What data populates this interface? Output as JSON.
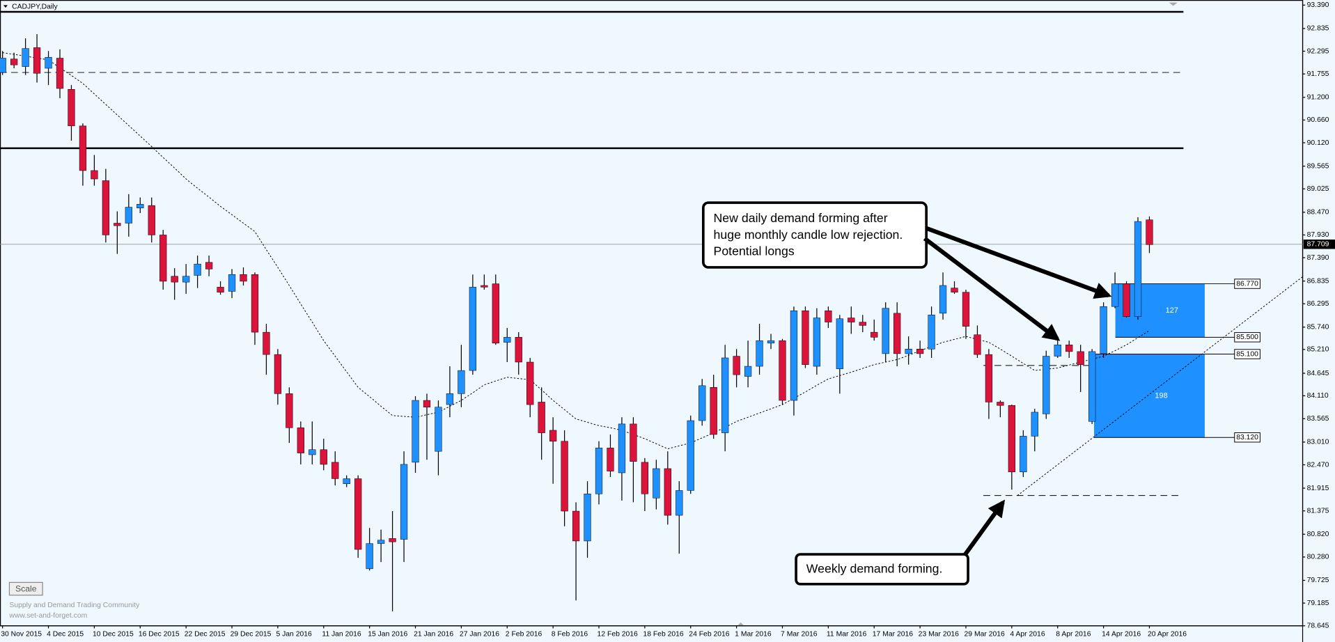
{
  "title": "CADJPY,Daily",
  "chart_data": {
    "type": "candlestick",
    "categories": [
      "30 Nov 2015",
      null,
      null,
      null,
      "4 Dec 2015",
      null,
      null,
      null,
      "10 Dec 2015",
      null,
      null,
      null,
      "16 Dec 2015",
      null,
      null,
      null,
      "22 Dec 2015",
      null,
      null,
      null,
      "29 Dec 2015",
      null,
      null,
      null,
      "5 Jan 2016",
      null,
      null,
      null,
      "11 Jan 2016",
      null,
      null,
      null,
      "15 Jan 2016",
      null,
      null,
      null,
      "21 Jan 2016",
      null,
      null,
      null,
      "27 Jan 2016",
      null,
      null,
      null,
      "2 Feb 2016",
      null,
      null,
      null,
      "8 Feb 2016",
      null,
      null,
      null,
      "12 Feb 2016",
      null,
      null,
      null,
      "18 Feb 2016",
      null,
      null,
      null,
      "24 Feb 2016",
      null,
      null,
      null,
      "1 Mar 2016",
      null,
      null,
      null,
      "7 Mar 2016",
      null,
      null,
      null,
      "11 Mar 2016",
      null,
      null,
      null,
      "17 Mar 2016",
      null,
      null,
      null,
      "23 Mar 2016",
      null,
      null,
      null,
      "29 Mar 2016",
      null,
      null,
      null,
      "4 Apr 2016",
      null,
      null,
      null,
      "8 Apr 2016",
      null,
      null,
      null,
      "14 Apr 2016",
      null,
      null,
      null,
      "20 Apr 2016"
    ],
    "ohlc": [
      [
        91.79,
        92.3,
        91.73,
        92.13
      ],
      [
        92.11,
        92.26,
        91.89,
        91.97
      ],
      [
        91.93,
        92.6,
        91.73,
        92.36
      ],
      [
        92.38,
        92.7,
        91.55,
        91.77
      ],
      [
        91.89,
        92.3,
        91.49,
        92.15
      ],
      [
        92.13,
        92.34,
        91.18,
        91.41
      ],
      [
        91.39,
        91.49,
        90.17,
        90.52
      ],
      [
        90.52,
        90.58,
        89.1,
        89.46
      ],
      [
        89.46,
        89.83,
        89.1,
        89.26
      ],
      [
        89.22,
        89.5,
        87.75,
        87.93
      ],
      [
        88.21,
        88.49,
        87.48,
        88.15
      ],
      [
        88.21,
        88.9,
        87.89,
        88.59
      ],
      [
        88.57,
        88.82,
        88.45,
        88.66
      ],
      [
        88.63,
        88.82,
        87.75,
        87.93
      ],
      [
        87.93,
        88.05,
        86.63,
        86.83
      ],
      [
        86.95,
        87.14,
        86.39,
        86.81
      ],
      [
        86.81,
        87.24,
        86.53,
        86.95
      ],
      [
        86.97,
        87.44,
        86.67,
        87.24
      ],
      [
        87.28,
        87.44,
        86.95,
        87.12
      ],
      [
        86.69,
        86.83,
        86.51,
        86.57
      ],
      [
        86.59,
        87.12,
        86.43,
        86.99
      ],
      [
        86.99,
        87.16,
        86.73,
        86.83
      ],
      [
        86.99,
        87.04,
        85.32,
        85.62
      ],
      [
        85.62,
        85.82,
        84.61,
        85.09
      ],
      [
        85.09,
        85.22,
        83.9,
        84.16
      ],
      [
        84.16,
        84.31,
        82.99,
        83.35
      ],
      [
        83.35,
        83.5,
        82.48,
        82.75
      ],
      [
        82.71,
        83.5,
        82.48,
        82.83
      ],
      [
        82.83,
        83.09,
        82.34,
        82.48
      ],
      [
        82.53,
        82.79,
        81.98,
        82.14
      ],
      [
        82.02,
        82.22,
        81.94,
        82.14
      ],
      [
        82.14,
        82.22,
        80.26,
        80.46
      ],
      [
        80.0,
        80.97,
        79.96,
        80.6
      ],
      [
        80.6,
        80.93,
        80.16,
        80.68
      ],
      [
        80.72,
        81.37,
        78.99,
        80.64
      ],
      [
        80.7,
        82.79,
        80.16,
        82.48
      ],
      [
        82.53,
        84.1,
        82.28,
        84.0
      ],
      [
        84.0,
        84.16,
        82.59,
        83.84
      ],
      [
        82.79,
        84.0,
        82.22,
        83.84
      ],
      [
        83.9,
        84.81,
        83.6,
        84.16
      ],
      [
        84.16,
        85.32,
        83.84,
        84.71
      ],
      [
        84.71,
        86.99,
        84.61,
        86.69
      ],
      [
        86.73,
        86.99,
        86.63,
        86.69
      ],
      [
        86.77,
        86.99,
        85.32,
        85.36
      ],
      [
        85.38,
        85.72,
        84.91,
        85.5
      ],
      [
        85.5,
        85.62,
        84.61,
        84.91
      ],
      [
        84.91,
        85.01,
        83.6,
        83.9
      ],
      [
        83.96,
        84.31,
        82.59,
        83.23
      ],
      [
        83.29,
        83.6,
        82.02,
        83.03
      ],
      [
        83.03,
        83.29,
        81.01,
        81.37
      ],
      [
        81.37,
        81.58,
        79.25,
        80.66
      ],
      [
        80.66,
        82.08,
        80.26,
        81.78
      ],
      [
        81.78,
        83.03,
        81.53,
        82.87
      ],
      [
        82.87,
        83.19,
        82.18,
        82.32
      ],
      [
        82.28,
        83.6,
        81.62,
        83.44
      ],
      [
        83.44,
        83.6,
        81.58,
        82.55
      ],
      [
        82.53,
        82.63,
        81.37,
        81.78
      ],
      [
        81.68,
        82.59,
        81.41,
        82.38
      ],
      [
        82.38,
        82.79,
        81.05,
        81.27
      ],
      [
        81.27,
        82.08,
        80.36,
        81.86
      ],
      [
        81.86,
        83.64,
        81.78,
        83.52
      ],
      [
        83.52,
        84.51,
        83.4,
        84.35
      ],
      [
        84.31,
        84.61,
        83.09,
        83.19
      ],
      [
        83.23,
        85.32,
        82.79,
        85.01
      ],
      [
        85.05,
        85.22,
        84.31,
        84.61
      ],
      [
        84.57,
        85.42,
        84.31,
        84.81
      ],
      [
        84.81,
        85.82,
        84.61,
        85.42
      ],
      [
        85.36,
        85.58,
        85.22,
        85.42
      ],
      [
        85.42,
        85.46,
        83.9,
        84.0
      ],
      [
        84.0,
        86.23,
        83.64,
        86.13
      ],
      [
        86.13,
        86.23,
        84.77,
        84.85
      ],
      [
        84.81,
        86.19,
        84.61,
        85.96
      ],
      [
        86.13,
        86.23,
        85.72,
        85.86
      ],
      [
        84.75,
        86.03,
        84.16,
        85.94
      ],
      [
        85.96,
        86.23,
        85.58,
        85.86
      ],
      [
        85.86,
        86.03,
        85.62,
        85.78
      ],
      [
        85.62,
        85.92,
        85.42,
        85.5
      ],
      [
        85.11,
        86.33,
        84.91,
        86.19
      ],
      [
        86.07,
        86.33,
        84.81,
        85.11
      ],
      [
        85.11,
        85.52,
        84.85,
        85.22
      ],
      [
        85.22,
        85.42,
        85.01,
        85.11
      ],
      [
        85.22,
        86.23,
        85.01,
        86.03
      ],
      [
        86.07,
        87.04,
        85.92,
        86.73
      ],
      [
        86.67,
        86.83,
        86.53,
        86.57
      ],
      [
        86.57,
        86.63,
        85.46,
        85.76
      ],
      [
        85.56,
        85.78,
        85.01,
        85.09
      ],
      [
        85.09,
        85.22,
        83.56,
        83.96
      ],
      [
        83.96,
        84.0,
        83.6,
        83.88
      ],
      [
        83.88,
        83.9,
        81.88,
        82.3
      ],
      [
        82.3,
        83.29,
        82.18,
        83.15
      ],
      [
        83.15,
        83.8,
        82.79,
        83.72
      ],
      [
        83.68,
        85.18,
        83.56,
        85.05
      ],
      [
        85.05,
        85.52,
        85.01,
        85.32
      ],
      [
        85.32,
        85.42,
        85.01,
        85.16
      ],
      [
        85.16,
        85.32,
        84.2,
        84.85
      ],
      [
        83.5,
        85.22,
        83.44,
        85.16
      ],
      [
        85.11,
        86.33,
        85.01,
        86.23
      ],
      [
        86.23,
        87.04,
        86.19,
        86.77
      ],
      [
        86.77,
        86.83,
        85.97,
        85.99
      ],
      [
        85.99,
        88.35,
        85.92,
        88.25
      ],
      [
        88.29,
        88.37,
        87.5,
        87.7
      ]
    ],
    "up_color": "#1e90ff",
    "down_color": "#dc143c",
    "moving_average": [
      92.26,
      92.22,
      92.18,
      92.13,
      92.09,
      91.9,
      91.72,
      91.53,
      91.28,
      91.03,
      90.78,
      90.53,
      90.28,
      90.03,
      89.77,
      89.52,
      89.26,
      89.04,
      88.83,
      88.61,
      88.41,
      88.21,
      88.01,
      87.58,
      87.16,
      86.73,
      86.29,
      85.86,
      85.42,
      85.05,
      84.68,
      84.31,
      84.09,
      83.86,
      83.64,
      83.62,
      83.6,
      83.66,
      83.72,
      83.86,
      84.0,
      84.18,
      84.37,
      84.46,
      84.55,
      84.52,
      84.49,
      84.25,
      84.0,
      83.78,
      83.56,
      83.48,
      83.4,
      83.35,
      83.29,
      83.19,
      83.09,
      82.97,
      82.85,
      82.92,
      82.99,
      83.11,
      83.23,
      83.36,
      83.5,
      83.6,
      83.7,
      83.8,
      83.9,
      84.05,
      84.2,
      84.36,
      84.51,
      84.59,
      84.67,
      84.76,
      84.85,
      84.91,
      84.97,
      85.07,
      85.18,
      85.28,
      85.38,
      85.45,
      85.52,
      85.45,
      85.38,
      85.22,
      85.05,
      84.88,
      84.71,
      84.74,
      84.77,
      84.84,
      84.91,
      84.98,
      85.05,
      85.18,
      85.32,
      85.49,
      85.66
    ],
    "ylim": [
      78.645,
      93.39
    ],
    "yticks": [
      {
        "value": 93.39,
        "label": "93.390"
      },
      92.835,
      92.295,
      91.755,
      {
        "value": 91.2,
        "label": "91.200"
      },
      {
        "value": 90.66,
        "label": "90.660"
      },
      {
        "value": 90.12,
        "label": "90.120"
      },
      89.565,
      89.025,
      {
        "value": 88.47,
        "label": "88.470"
      },
      {
        "value": 87.93,
        "label": "87.930"
      },
      {
        "value": 87.39,
        "label": "87.390"
      },
      86.835,
      86.295,
      {
        "value": 85.74,
        "label": "85.740"
      },
      {
        "value": 85.21,
        "label": "85.210"
      },
      84.645,
      {
        "value": 84.11,
        "label": "84.110"
      },
      83.565,
      {
        "value": 83.01,
        "label": "83.010"
      },
      {
        "value": 82.47,
        "label": "82.470"
      },
      81.915,
      81.375,
      {
        "value": 80.82,
        "label": "80.820"
      },
      {
        "value": 80.28,
        "label": "80.280"
      },
      79.725,
      79.185,
      78.645
    ],
    "current_price": 87.709,
    "levels": [
      {
        "value": 93.23,
        "style": "solid",
        "span": "full"
      },
      {
        "value": 91.79,
        "style": "dashed",
        "span": "full"
      },
      {
        "value": 89.99,
        "style": "solid",
        "span": "full"
      },
      {
        "value": 84.83,
        "style": "dashed",
        "span": "partial"
      },
      {
        "value": 81.74,
        "style": "dashed",
        "span": "partial"
      }
    ],
    "zones": [
      {
        "high": {
          "value": 86.77,
          "label": "86.770"
        },
        "low": {
          "value": 85.5,
          "label": "85.500"
        },
        "label": "127"
      },
      {
        "high": {
          "value": 85.1,
          "label": "85.100"
        },
        "low": {
          "value": 83.12,
          "label": "83.120"
        },
        "label": "198"
      }
    ],
    "annotations": [
      {
        "lines": [
          "New daily demand forming after",
          "huge monthly candle low rejection.",
          "Potential longs"
        ]
      },
      {
        "lines": [
          "Weekly demand forming."
        ]
      }
    ]
  },
  "scale_button": "Scale",
  "watermark": [
    "Supply and Demand Trading Community",
    "www.set-and-forget.com"
  ]
}
